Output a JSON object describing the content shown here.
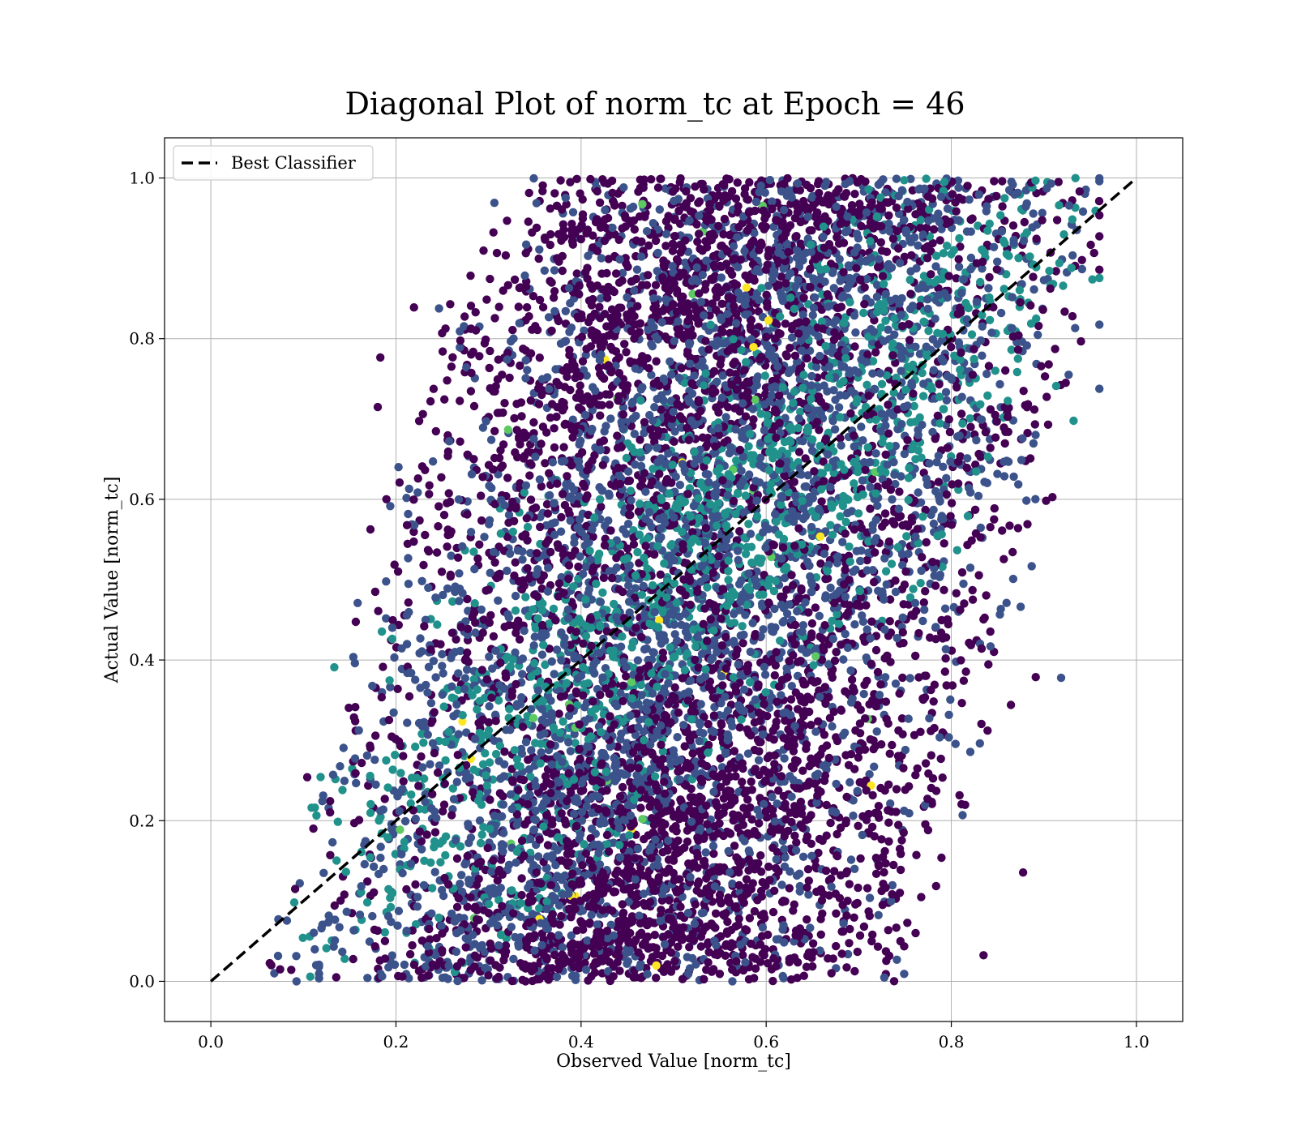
{
  "chart_data": {
    "type": "scatter",
    "title": "Diagonal Plot of norm_tc at Epoch = 46",
    "xlabel": "Observed Value [norm_tc]",
    "ylabel": "Actual Value [norm_tc]",
    "xlim": [
      -0.05,
      1.05
    ],
    "ylim": [
      -0.05,
      1.05
    ],
    "xticks": [
      "0.0",
      "0.2",
      "0.4",
      "0.6",
      "0.8",
      "1.0"
    ],
    "yticks": [
      "0.0",
      "0.2",
      "0.4",
      "0.6",
      "0.8",
      "1.0"
    ],
    "grid": true,
    "legend": {
      "placement": "top-left",
      "entries": [
        {
          "label": "Best Classifier",
          "style": "dashed",
          "color": "#000000"
        }
      ]
    },
    "reference_line": {
      "name": "Best Classifier",
      "x": [
        0.0,
        1.0
      ],
      "y": [
        0.0,
        1.0
      ],
      "color": "#000000",
      "style": "dashed"
    },
    "colormap": [
      "#440154",
      "#3b528b",
      "#21918c",
      "#5ec962",
      "#fde725"
    ],
    "point_cloud": {
      "approx_points": 9000,
      "x_range_observed": [
        0.05,
        0.96
      ],
      "y_range_actual": [
        0.0,
        1.0
      ],
      "pattern": "band offset from diagonal; low actual values spread right, high actual values spread left"
    }
  }
}
